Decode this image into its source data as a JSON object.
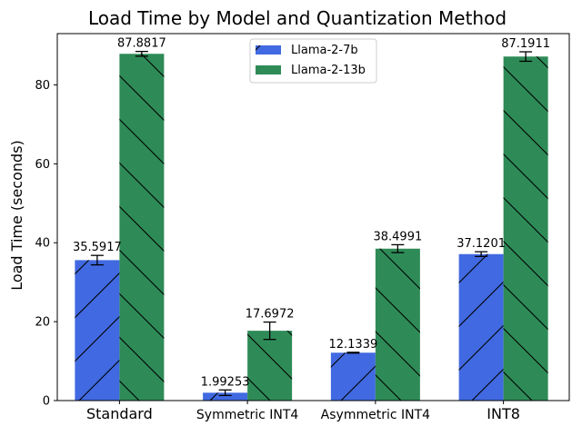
{
  "chart_data": {
    "type": "bar",
    "title": "Load Time by Model and Quantization Method",
    "xlabel": "",
    "ylabel": "Load Time (seconds)",
    "categories": [
      "Standard",
      "Symmetric INT4",
      "Asymmetric INT4",
      "INT8"
    ],
    "ylim": [
      0,
      93
    ],
    "yticks": [
      0,
      20,
      40,
      60,
      80
    ],
    "grid": false,
    "legend_position": "top-center",
    "series": [
      {
        "name": "Llama-2-7b",
        "color": "#4169e1",
        "hatch": "/",
        "values": [
          35.5917,
          1.99253,
          12.1339,
          37.1201
        ],
        "labels": [
          "35.5917",
          "1.99253",
          "12.1339",
          "37.1201"
        ],
        "errors": [
          1.2,
          0.7,
          0.1,
          0.6
        ]
      },
      {
        "name": "Llama-2-13b",
        "color": "#2e8b57",
        "hatch": "\\",
        "values": [
          87.8817,
          17.6972,
          38.4991,
          87.1911
        ],
        "labels": [
          "87.8817",
          "17.6972",
          "38.4991",
          "87.1911"
        ],
        "errors": [
          0.6,
          2.2,
          1.0,
          1.2
        ]
      }
    ]
  }
}
